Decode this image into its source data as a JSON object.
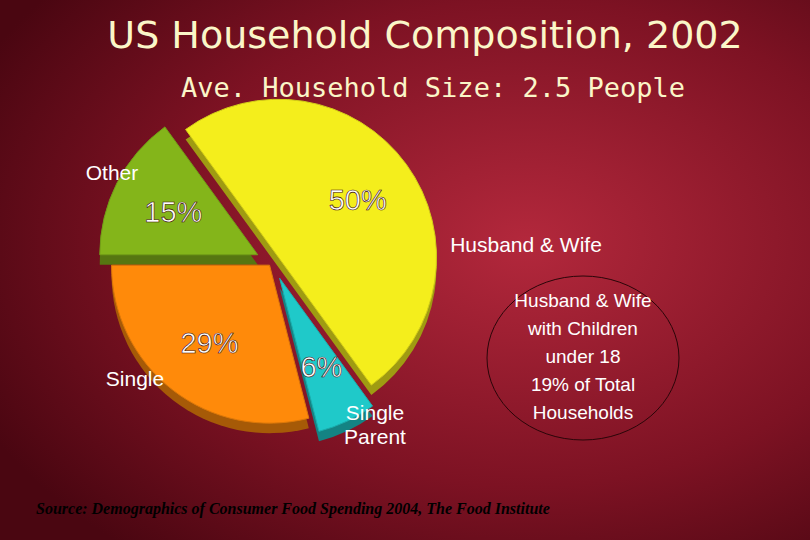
{
  "chart_data": {
    "type": "pie",
    "title": "US Household Composition, 2002",
    "subtitle": "Ave. Household Size: 2.5 People",
    "categories": [
      "Husband & Wife",
      "Single Parent",
      "Single",
      "Other"
    ],
    "values": [
      50,
      6,
      29,
      15
    ],
    "value_labels": [
      "50%",
      "6%",
      "29%",
      "15%"
    ],
    "colors": [
      "#f4ee1c",
      "#1fc9c9",
      "#ff8a0a",
      "#84b51a"
    ],
    "data_labels": true,
    "annotation": [
      "Husband & Wife",
      "with Children",
      "under 18",
      "19% of Total",
      "Households"
    ],
    "source": "Source: Demographics of Consumer Food Spending 2004, The Food Institute"
  }
}
